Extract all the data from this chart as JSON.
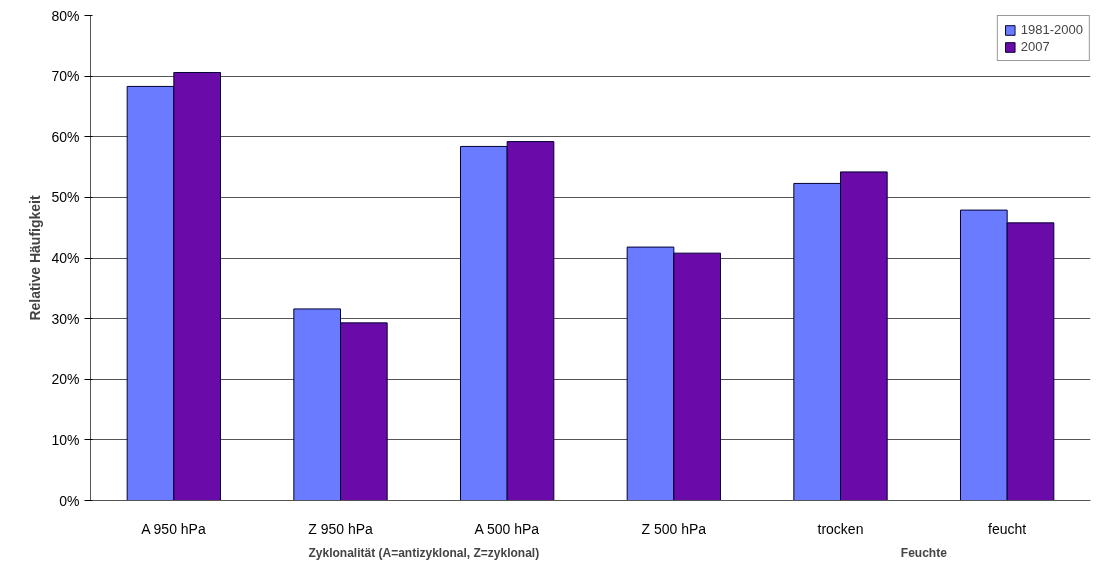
{
  "chart_data": {
    "type": "bar",
    "ylabel": "Relative Häufigkeit",
    "categories": [
      "A 950 hPa",
      "Z 950 hPa",
      "A 500 hPa",
      "Z 500 hPa",
      "trocken",
      "feucht"
    ],
    "series": [
      {
        "name": "1981-2000",
        "color": "#6b7bff",
        "values": [
          68.3,
          31.6,
          58.4,
          41.8,
          52.3,
          47.9
        ]
      },
      {
        "name": "2007",
        "color": "#6a0aa8",
        "values": [
          70.6,
          29.3,
          59.2,
          40.8,
          54.2,
          45.8
        ]
      }
    ],
    "ylim": [
      0,
      80
    ],
    "yticks": [
      {
        "value": 0,
        "label": "0%"
      },
      {
        "value": 10,
        "label": "10%"
      },
      {
        "value": 20,
        "label": "20%"
      },
      {
        "value": 30,
        "label": "30%"
      },
      {
        "value": 40,
        "label": "40%"
      },
      {
        "value": 50,
        "label": "50%"
      },
      {
        "value": 60,
        "label": "60%"
      },
      {
        "value": 70,
        "label": "70%"
      },
      {
        "value": 80,
        "label": "80%"
      }
    ],
    "grid": "y",
    "legend": "top right",
    "annotations": [
      "Zyklonalität (A=antizyklonal, Z=zyklonal)",
      "Feuchte"
    ]
  }
}
